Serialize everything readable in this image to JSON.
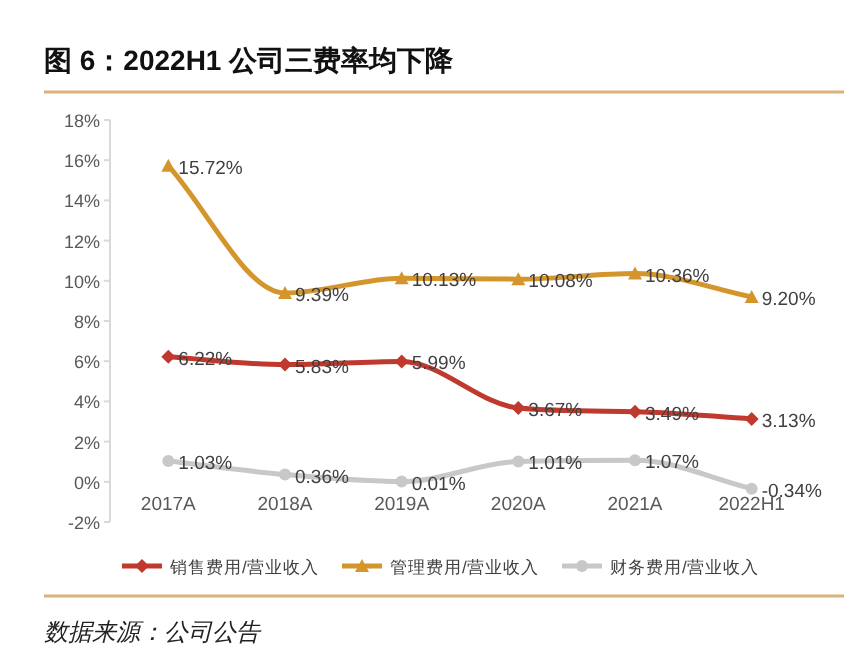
{
  "chart_data": {
    "type": "line",
    "title": "图 6：2022H1 公司三费率均下降",
    "categories": [
      "2017A",
      "2018A",
      "2019A",
      "2020A",
      "2021A",
      "2022H1"
    ],
    "series": [
      {
        "name": "销售费用/营业收入",
        "color": "#c0392f",
        "marker": "diamond",
        "values": [
          6.22,
          5.83,
          5.99,
          3.67,
          3.49,
          3.13
        ],
        "value_labels": [
          "6.22%",
          "5.83%",
          "5.99%",
          "3.67%",
          "3.49%",
          "3.13%"
        ]
      },
      {
        "name": "管理费用/营业收入",
        "color": "#d4962c",
        "marker": "triangle",
        "values": [
          15.72,
          9.39,
          10.13,
          10.08,
          10.36,
          9.2
        ],
        "value_labels": [
          "15.72%",
          "9.39%",
          "10.13%",
          "10.08%",
          "10.36%",
          "9.20%"
        ]
      },
      {
        "name": "财务费用/营业收入",
        "color": "#c8c8c8",
        "marker": "circle",
        "values": [
          1.03,
          0.36,
          0.01,
          1.01,
          1.07,
          -0.34
        ],
        "value_labels": [
          "1.03%",
          "0.36%",
          "0.01%",
          "1.01%",
          "1.07%",
          "-0.34%"
        ]
      }
    ],
    "ylim": [
      -2,
      18
    ],
    "yticks": [
      {
        "value": -2,
        "label": "-2%"
      },
      {
        "value": 0,
        "label": "0%"
      },
      {
        "value": 2,
        "label": "2%"
      },
      {
        "value": 4,
        "label": "4%"
      },
      {
        "value": 6,
        "label": "6%"
      },
      {
        "value": 8,
        "label": "8%"
      },
      {
        "value": 10,
        "label": "10%"
      },
      {
        "value": 12,
        "label": "12%"
      },
      {
        "value": 14,
        "label": "14%"
      },
      {
        "value": 16,
        "label": "16%"
      },
      {
        "value": 18,
        "label": "18%"
      }
    ],
    "legend": "bottom",
    "annotations": [
      "数据来源：公司公告"
    ]
  }
}
